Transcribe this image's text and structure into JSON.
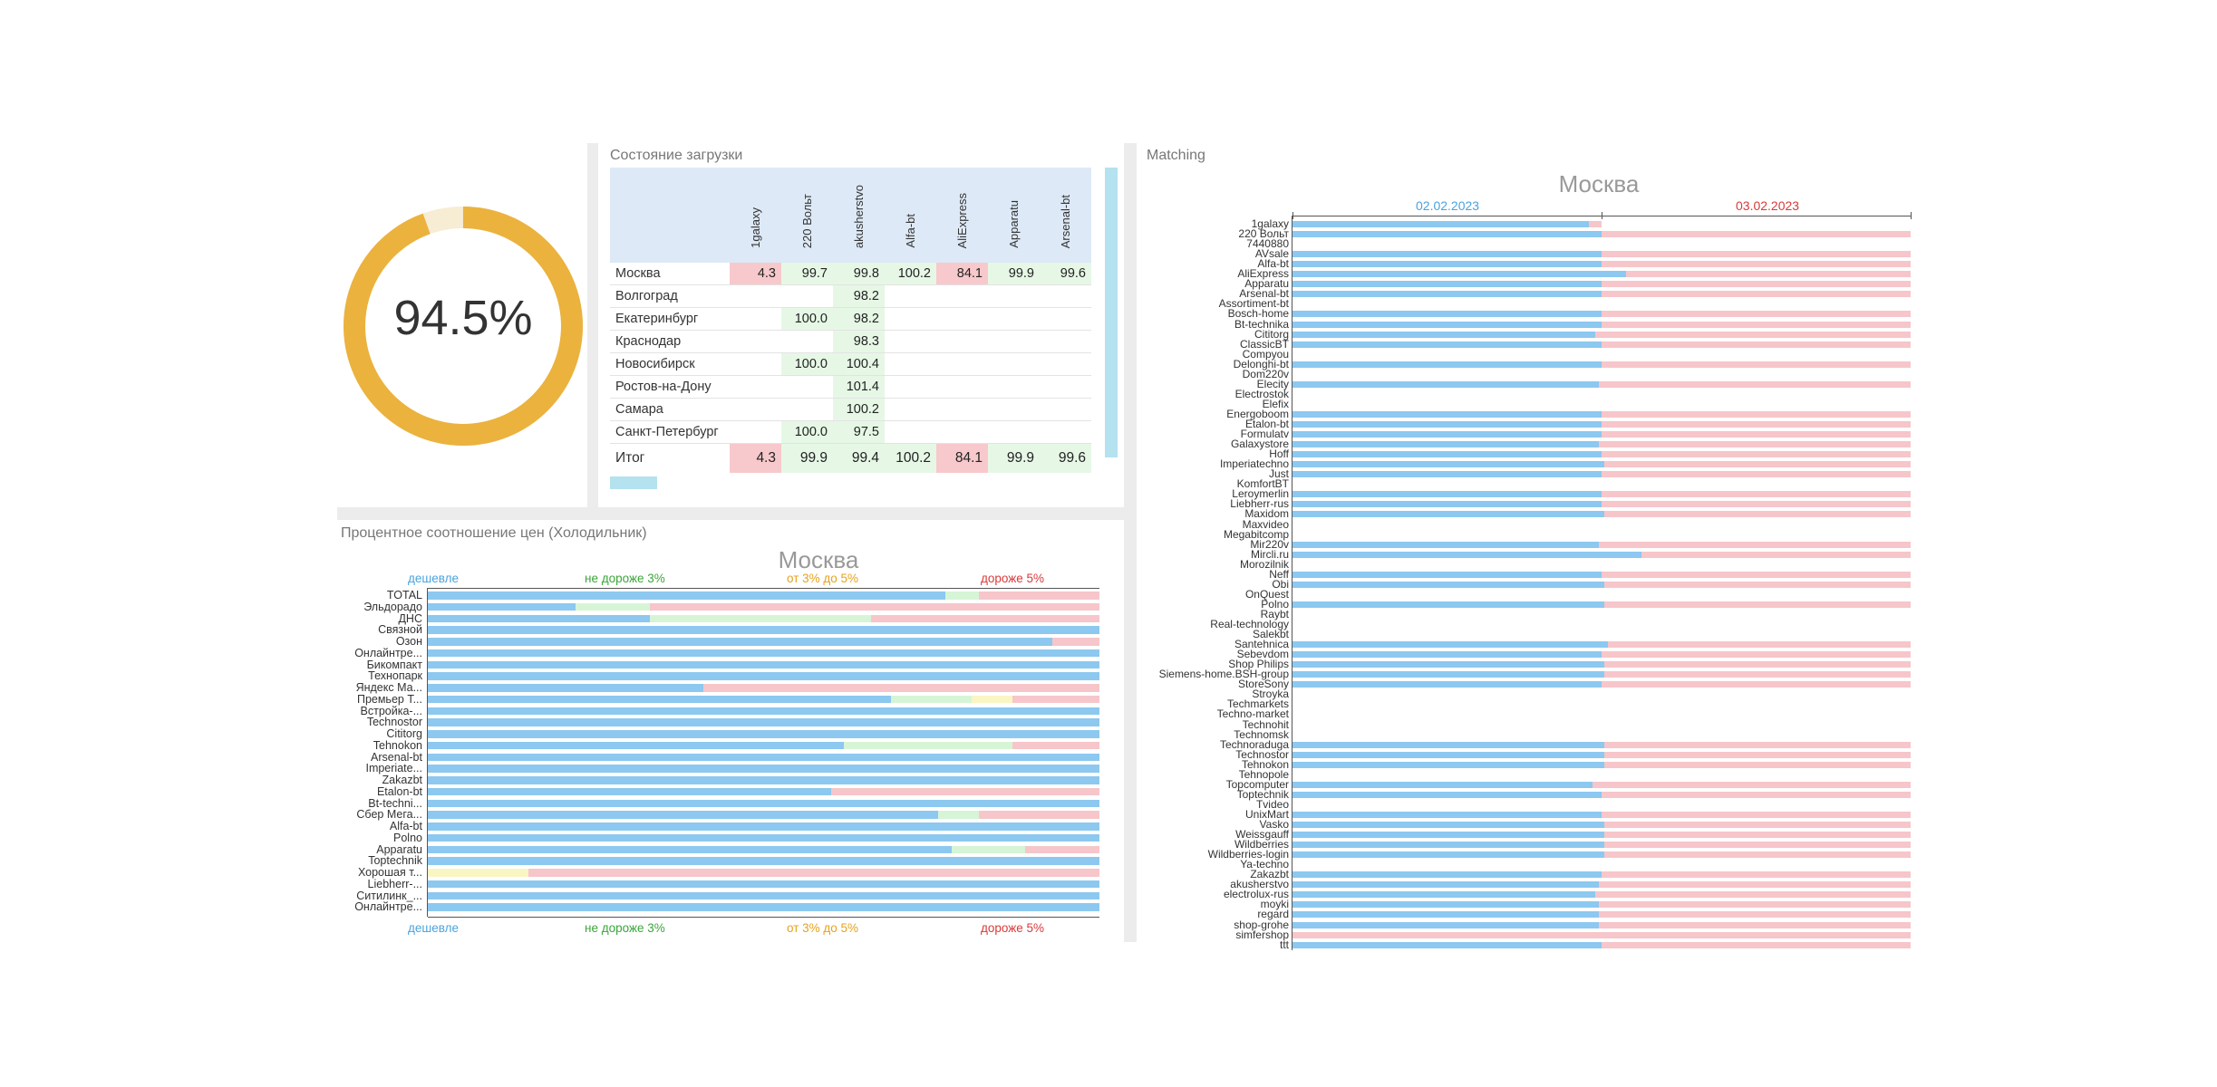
{
  "colors": {
    "blue": "#8cc8ef",
    "green": "#d6f5d6",
    "yellow": "#faf6c4",
    "red": "#f6c6ca",
    "gauge": "#ebb23d",
    "gauge_rest": "#f7ecd4",
    "header_bg": "#dde9f6"
  },
  "gauge": {
    "value_text": "94.5%",
    "fraction": 0.945
  },
  "status": {
    "title": "Состояние загрузки",
    "columns": [
      "1galaxy",
      "220 Вольт",
      "akusherstvo",
      "Alfa-bt",
      "AliExpress",
      "Apparatu",
      "Arsenal-bt"
    ],
    "rows": [
      {
        "label": "Москва",
        "cells": [
          "4.3",
          "99.7",
          "99.8",
          "100.2",
          "84.1",
          "99.9",
          "99.6"
        ],
        "tones": [
          "r",
          "g",
          "g",
          "g",
          "r",
          "g",
          "g"
        ]
      },
      {
        "label": "Волгоград",
        "cells": [
          "",
          "",
          "98.2",
          "",
          "",
          "",
          ""
        ],
        "tones": [
          "",
          "",
          "g",
          "",
          "",
          "",
          ""
        ]
      },
      {
        "label": "Екатеринбург",
        "cells": [
          "",
          "100.0",
          "98.2",
          "",
          "",
          "",
          ""
        ],
        "tones": [
          "",
          "g",
          "g",
          "",
          "",
          "",
          ""
        ]
      },
      {
        "label": "Краснодар",
        "cells": [
          "",
          "",
          "98.3",
          "",
          "",
          "",
          ""
        ],
        "tones": [
          "",
          "",
          "g",
          "",
          "",
          "",
          ""
        ]
      },
      {
        "label": "Новосибирск",
        "cells": [
          "",
          "100.0",
          "100.4",
          "",
          "",
          "",
          ""
        ],
        "tones": [
          "",
          "g",
          "g",
          "",
          "",
          "",
          ""
        ]
      },
      {
        "label": "Ростов-на-Дону",
        "cells": [
          "",
          "",
          "101.4",
          "",
          "",
          "",
          ""
        ],
        "tones": [
          "",
          "",
          "g",
          "",
          "",
          "",
          ""
        ]
      },
      {
        "label": "Самара",
        "cells": [
          "",
          "",
          "100.2",
          "",
          "",
          "",
          ""
        ],
        "tones": [
          "",
          "",
          "g",
          "",
          "",
          "",
          ""
        ]
      },
      {
        "label": "Санкт-Петербург",
        "cells": [
          "",
          "100.0",
          "97.5",
          "",
          "",
          "",
          ""
        ],
        "tones": [
          "",
          "g",
          "g",
          "",
          "",
          "",
          ""
        ]
      }
    ],
    "total": {
      "label": "Итог",
      "cells": [
        "4.3",
        "99.9",
        "99.4",
        "100.2",
        "84.1",
        "99.9",
        "99.6"
      ],
      "tones": [
        "r",
        "g",
        "g",
        "g",
        "r",
        "g",
        "g"
      ]
    }
  },
  "prices": {
    "panel_title": "Процентное соотношение цен (Холодильник)",
    "chart_title": "Москва",
    "legend": [
      "дешевле",
      "не дороже 3%",
      "от 3% до 5%",
      "дороже 5%"
    ],
    "legend_colors": [
      "#4aa3df",
      "#3aa63a",
      "#e6a21f",
      "#d93a3a"
    ]
  },
  "matching": {
    "panel_title": "Matching",
    "chart_title": "Москва",
    "dates": [
      "02.02.2023",
      "03.02.2023"
    ],
    "date_colors": [
      "#4aa3df",
      "#d93a3a"
    ]
  },
  "chart_data": [
    {
      "type": "bar",
      "stacked": true,
      "orientation": "horizontal",
      "title": "Москва",
      "categories": [
        "TOTAL",
        "Эльдорадо",
        "ДНС",
        "Связной",
        "Озон",
        "Онлайнтре...",
        "Бикомпакт",
        "Технопарк",
        "Яндекс Ма...",
        "Премьер Т...",
        "Встройка-...",
        "Technostor",
        "Cititorg",
        "Tehnokon",
        "Arsenal-bt",
        "Imperiate...",
        "Zakazbt",
        "Etalon-bt",
        "Bt-techni...",
        "Сбер Мега...",
        "Alfa-bt",
        "Polno",
        "Apparatu",
        "Toptechnik",
        "Хорошая т...",
        "Liebherr-...",
        "Ситилинк_...",
        "Онлайнтре..."
      ],
      "series": [
        {
          "name": "дешевле",
          "values": [
            77,
            22,
            33,
            100,
            93,
            100,
            100,
            100,
            41,
            69,
            100,
            100,
            100,
            62,
            100,
            100,
            100,
            60,
            100,
            76,
            100,
            100,
            78,
            100,
            0,
            100,
            100,
            100
          ]
        },
        {
          "name": "не дороже 3%",
          "values": [
            5,
            11,
            33,
            0,
            0,
            0,
            0,
            0,
            0,
            12,
            0,
            0,
            0,
            25,
            0,
            0,
            0,
            0,
            0,
            6,
            0,
            0,
            11,
            0,
            0,
            0,
            0,
            0
          ]
        },
        {
          "name": "от 3% до 5%",
          "values": [
            0,
            0,
            0,
            0,
            0,
            0,
            0,
            0,
            0,
            6,
            0,
            0,
            0,
            0,
            0,
            0,
            0,
            0,
            0,
            0,
            0,
            0,
            0,
            0,
            15,
            0,
            0,
            0
          ]
        },
        {
          "name": "дороже 5%",
          "values": [
            18,
            67,
            34,
            0,
            7,
            0,
            0,
            0,
            59,
            13,
            0,
            0,
            0,
            13,
            0,
            0,
            0,
            40,
            0,
            18,
            0,
            0,
            11,
            0,
            85,
            0,
            0,
            0
          ]
        }
      ]
    },
    {
      "type": "bar",
      "stacked": true,
      "orientation": "horizontal",
      "title": "Москва",
      "categories": [
        "1galaxy",
        "220 Вольт",
        "7440880",
        "AVsale",
        "Alfa-bt",
        "AliExpress",
        "Apparatu",
        "Arsenal-bt",
        "Assortiment-bt",
        "Bosch-home",
        "Bt-technika",
        "Cititorg",
        "ClassicBT",
        "Compyou",
        "Delonghi-bt",
        "Dom220v",
        "Elecity",
        "Electrostok",
        "Elefix",
        "Energoboom",
        "Etalon-bt",
        "Formulatv",
        "Galaxystore",
        "Hoff",
        "Imperiatechno",
        "Just",
        "KomfortBT",
        "Leroymerlin",
        "Liebherr-rus",
        "Maxidom",
        "Maxvideo",
        "Megabitcomp",
        "Mir220v",
        "Mircli.ru",
        "Morozilnik",
        "Neff",
        "Obi",
        "OnQuest",
        "Polno",
        "Raybt",
        "Real-technology",
        "Salekbt",
        "Santehnica",
        "Sebevdom",
        "Shop Philips",
        "Siemens-home.BSH-group",
        "StoreSony",
        "Stroyka",
        "Techmarkets",
        "Techno-market",
        "Technohit",
        "Technomsk",
        "Technoraduga",
        "Technostor",
        "Tehnokon",
        "Tehnopole",
        "Topcomputer",
        "Toptechnik",
        "Tvideo",
        "UnixMart",
        "Vasko",
        "Weissgauff",
        "Wildberries",
        "Wildberries-login",
        "Ya-techno",
        "Zakazbt",
        "akusherstvo",
        "electrolux-rus",
        "moyki",
        "regard",
        "shop-grohe",
        "simfershop",
        "ttt"
      ],
      "series": [
        {
          "name": "02.02.2023",
          "values": [
            96,
            100,
            0,
            100,
            100,
            108,
            100,
            100,
            0,
            100,
            100,
            98,
            100,
            0,
            100,
            0,
            99,
            0,
            0,
            100,
            100,
            100,
            99,
            100,
            101,
            100,
            0,
            100,
            100,
            101,
            0,
            0,
            99,
            113,
            0,
            100,
            101,
            0,
            101,
            0,
            0,
            0,
            102,
            100,
            101,
            101,
            100,
            0,
            0,
            0,
            0,
            0,
            101,
            101,
            101,
            0,
            97,
            100,
            0,
            100,
            101,
            101,
            101,
            101,
            0,
            100,
            99,
            98,
            99,
            99,
            99,
            0,
            100
          ]
        },
        {
          "name": "03.02.2023",
          "values": [
            4,
            100,
            0,
            100,
            100,
            92,
            100,
            100,
            0,
            100,
            100,
            102,
            100,
            0,
            100,
            0,
            101,
            0,
            0,
            100,
            100,
            100,
            101,
            100,
            99,
            100,
            0,
            100,
            100,
            99,
            0,
            0,
            101,
            87,
            0,
            100,
            99,
            0,
            99,
            0,
            0,
            0,
            98,
            100,
            99,
            99,
            100,
            0,
            0,
            0,
            0,
            0,
            99,
            99,
            99,
            0,
            103,
            100,
            0,
            100,
            99,
            99,
            99,
            99,
            0,
            100,
            101,
            102,
            101,
            101,
            101,
            200,
            100
          ]
        }
      ]
    }
  ]
}
